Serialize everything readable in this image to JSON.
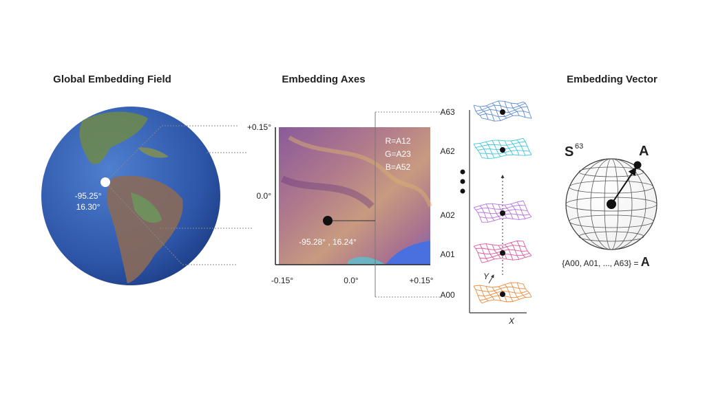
{
  "panels": [
    {
      "title": "Global Embedding Field",
      "point_label": [
        "-95.25°",
        "16.30°"
      ]
    },
    {
      "title": "Embedding Axes",
      "y_axis_labels": [
        "+0.15°",
        "0.0°"
      ],
      "x_axis_labels": [
        "-0.15°",
        "0.0°",
        "+0.15°"
      ],
      "channels": [
        "R=A12",
        "G=A23",
        "B=A52"
      ],
      "point_label": "-95.28° , 16.24°",
      "layers": [
        "A63",
        "A62",
        "A02",
        "A01",
        "A00"
      ],
      "axis_y": "Y",
      "axis_x": "X"
    },
    {
      "title": "Embedding Vector",
      "sphere_symbol": "S",
      "sphere_dim": "63",
      "vector_label": "A",
      "equation": "{A00, A01, ..., A63} = ",
      "equation_symbol": "A"
    }
  ]
}
